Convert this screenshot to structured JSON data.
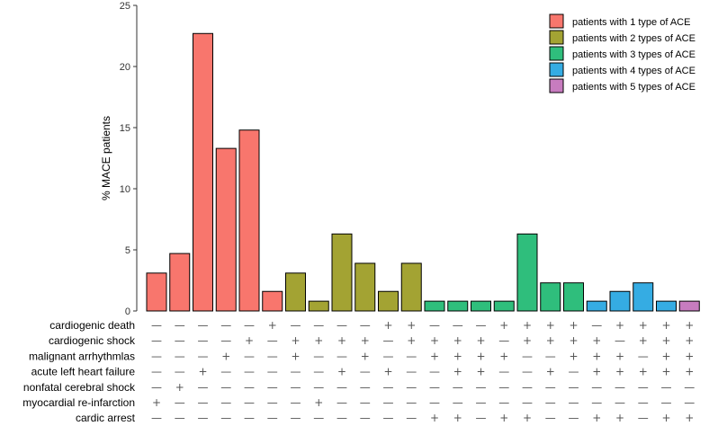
{
  "chart_data": {
    "type": "bar",
    "ylabel": "% MACE patients",
    "xlabel": "",
    "ylim": [
      0,
      25
    ],
    "yticks": [
      0,
      5,
      10,
      15,
      20,
      25
    ],
    "grid": false,
    "legend_position": "top-right",
    "series": [
      {
        "name": "patients with 1 type of ACE",
        "color": "#F8766D"
      },
      {
        "name": "patients with 2 types of ACE",
        "color": "#A3A333"
      },
      {
        "name": "patients with 3 types of ACE",
        "color": "#2FBE7C"
      },
      {
        "name": "patients with 4 types of ACE",
        "color": "#35ACE3"
      },
      {
        "name": "patients with 5 types of ACE",
        "color": "#C77CBF"
      }
    ],
    "values": [
      3.1,
      4.7,
      22.7,
      13.3,
      14.8,
      1.6,
      3.1,
      0.8,
      6.3,
      3.9,
      1.6,
      3.9,
      0.8,
      0.8,
      0.8,
      0.8,
      6.3,
      2.3,
      2.3,
      0.8,
      1.6,
      2.3,
      0.8,
      0.8
    ],
    "groups": [
      0,
      0,
      0,
      0,
      0,
      0,
      1,
      1,
      1,
      1,
      1,
      1,
      2,
      2,
      2,
      2,
      2,
      2,
      2,
      3,
      3,
      3,
      3,
      4
    ],
    "matrix": {
      "rows": [
        {
          "label": "cardiogenic death",
          "symbols": [
            "—",
            "—",
            "—",
            "—",
            "—",
            "+",
            "—",
            "—",
            "—",
            "—",
            "+",
            "+",
            "—",
            "—",
            "—",
            "+",
            "+",
            "+",
            "+",
            "—",
            "+",
            "+",
            "+",
            "+"
          ]
        },
        {
          "label": "cardiogenic shock",
          "symbols": [
            "—",
            "—",
            "—",
            "—",
            "+",
            "—",
            "+",
            "+",
            "+",
            "+",
            "—",
            "+",
            "+",
            "+",
            "+",
            "—",
            "+",
            "+",
            "+",
            "+",
            "—",
            "+",
            "+",
            "+"
          ]
        },
        {
          "label": "malignant arrhythmlas",
          "symbols": [
            "—",
            "—",
            "—",
            "+",
            "—",
            "—",
            "+",
            "—",
            "—",
            "+",
            "—",
            "—",
            "+",
            "+",
            "+",
            "+",
            "—",
            "—",
            "+",
            "+",
            "+",
            "—",
            "+",
            "+"
          ]
        },
        {
          "label": "acute left heart failure",
          "symbols": [
            "—",
            "—",
            "+",
            "—",
            "—",
            "—",
            "—",
            "—",
            "+",
            "—",
            "+",
            "—",
            "—",
            "+",
            "+",
            "—",
            "—",
            "+",
            "—",
            "+",
            "+",
            "+",
            "+",
            "+"
          ]
        },
        {
          "label": "nonfatal cerebral shock",
          "symbols": [
            "—",
            "+",
            "—",
            "—",
            "—",
            "—",
            "—",
            "—",
            "—",
            "—",
            "—",
            "—",
            "—",
            "—",
            "—",
            "—",
            "—",
            "—",
            "—",
            "—",
            "—",
            "—",
            "—",
            "—"
          ]
        },
        {
          "label": "myocardial re-infarction",
          "symbols": [
            "+",
            "—",
            "—",
            "—",
            "—",
            "—",
            "—",
            "+",
            "—",
            "—",
            "—",
            "—",
            "—",
            "—",
            "—",
            "—",
            "—",
            "—",
            "—",
            "—",
            "—",
            "—",
            "—",
            "—"
          ]
        },
        {
          "label": "cardic arrest",
          "symbols": [
            "—",
            "—",
            "—",
            "—",
            "—",
            "—",
            "—",
            "—",
            "—",
            "—",
            "—",
            "—",
            "+",
            "+",
            "—",
            "+",
            "+",
            "—",
            "—",
            "+",
            "+",
            "—",
            "+",
            "+"
          ]
        }
      ]
    }
  }
}
